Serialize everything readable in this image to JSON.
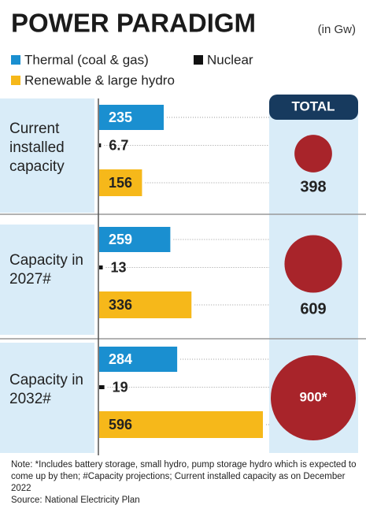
{
  "title": "POWER PARADIGM",
  "unit": "(in Gw)",
  "chart_data": {
    "type": "bar",
    "categories": [
      "Current installed capacity",
      "Capacity in 2027#",
      "Capacity in 2032#"
    ],
    "series": [
      {
        "name": "Thermal (coal & gas)",
        "color": "#1a8fd0",
        "values": [
          235,
          259,
          284
        ]
      },
      {
        "name": "Nuclear",
        "color": "#111111",
        "values": [
          6.7,
          13,
          19
        ]
      },
      {
        "name": "Renewable & large hydro",
        "color": "#f6b81a",
        "values": [
          156,
          336,
          596
        ]
      }
    ],
    "totals": {
      "name": "TOTAL",
      "color": "#a8242a",
      "values": [
        398,
        609,
        900
      ],
      "value_labels": [
        "398",
        "609",
        "900*"
      ]
    }
  },
  "note": "Note: *Includes battery storage, small hydro, pump storage hydro which is expected to come up by then; #Capacity projections; Current installed capacity as on December 2022",
  "source": "Source: National Electricity Plan"
}
